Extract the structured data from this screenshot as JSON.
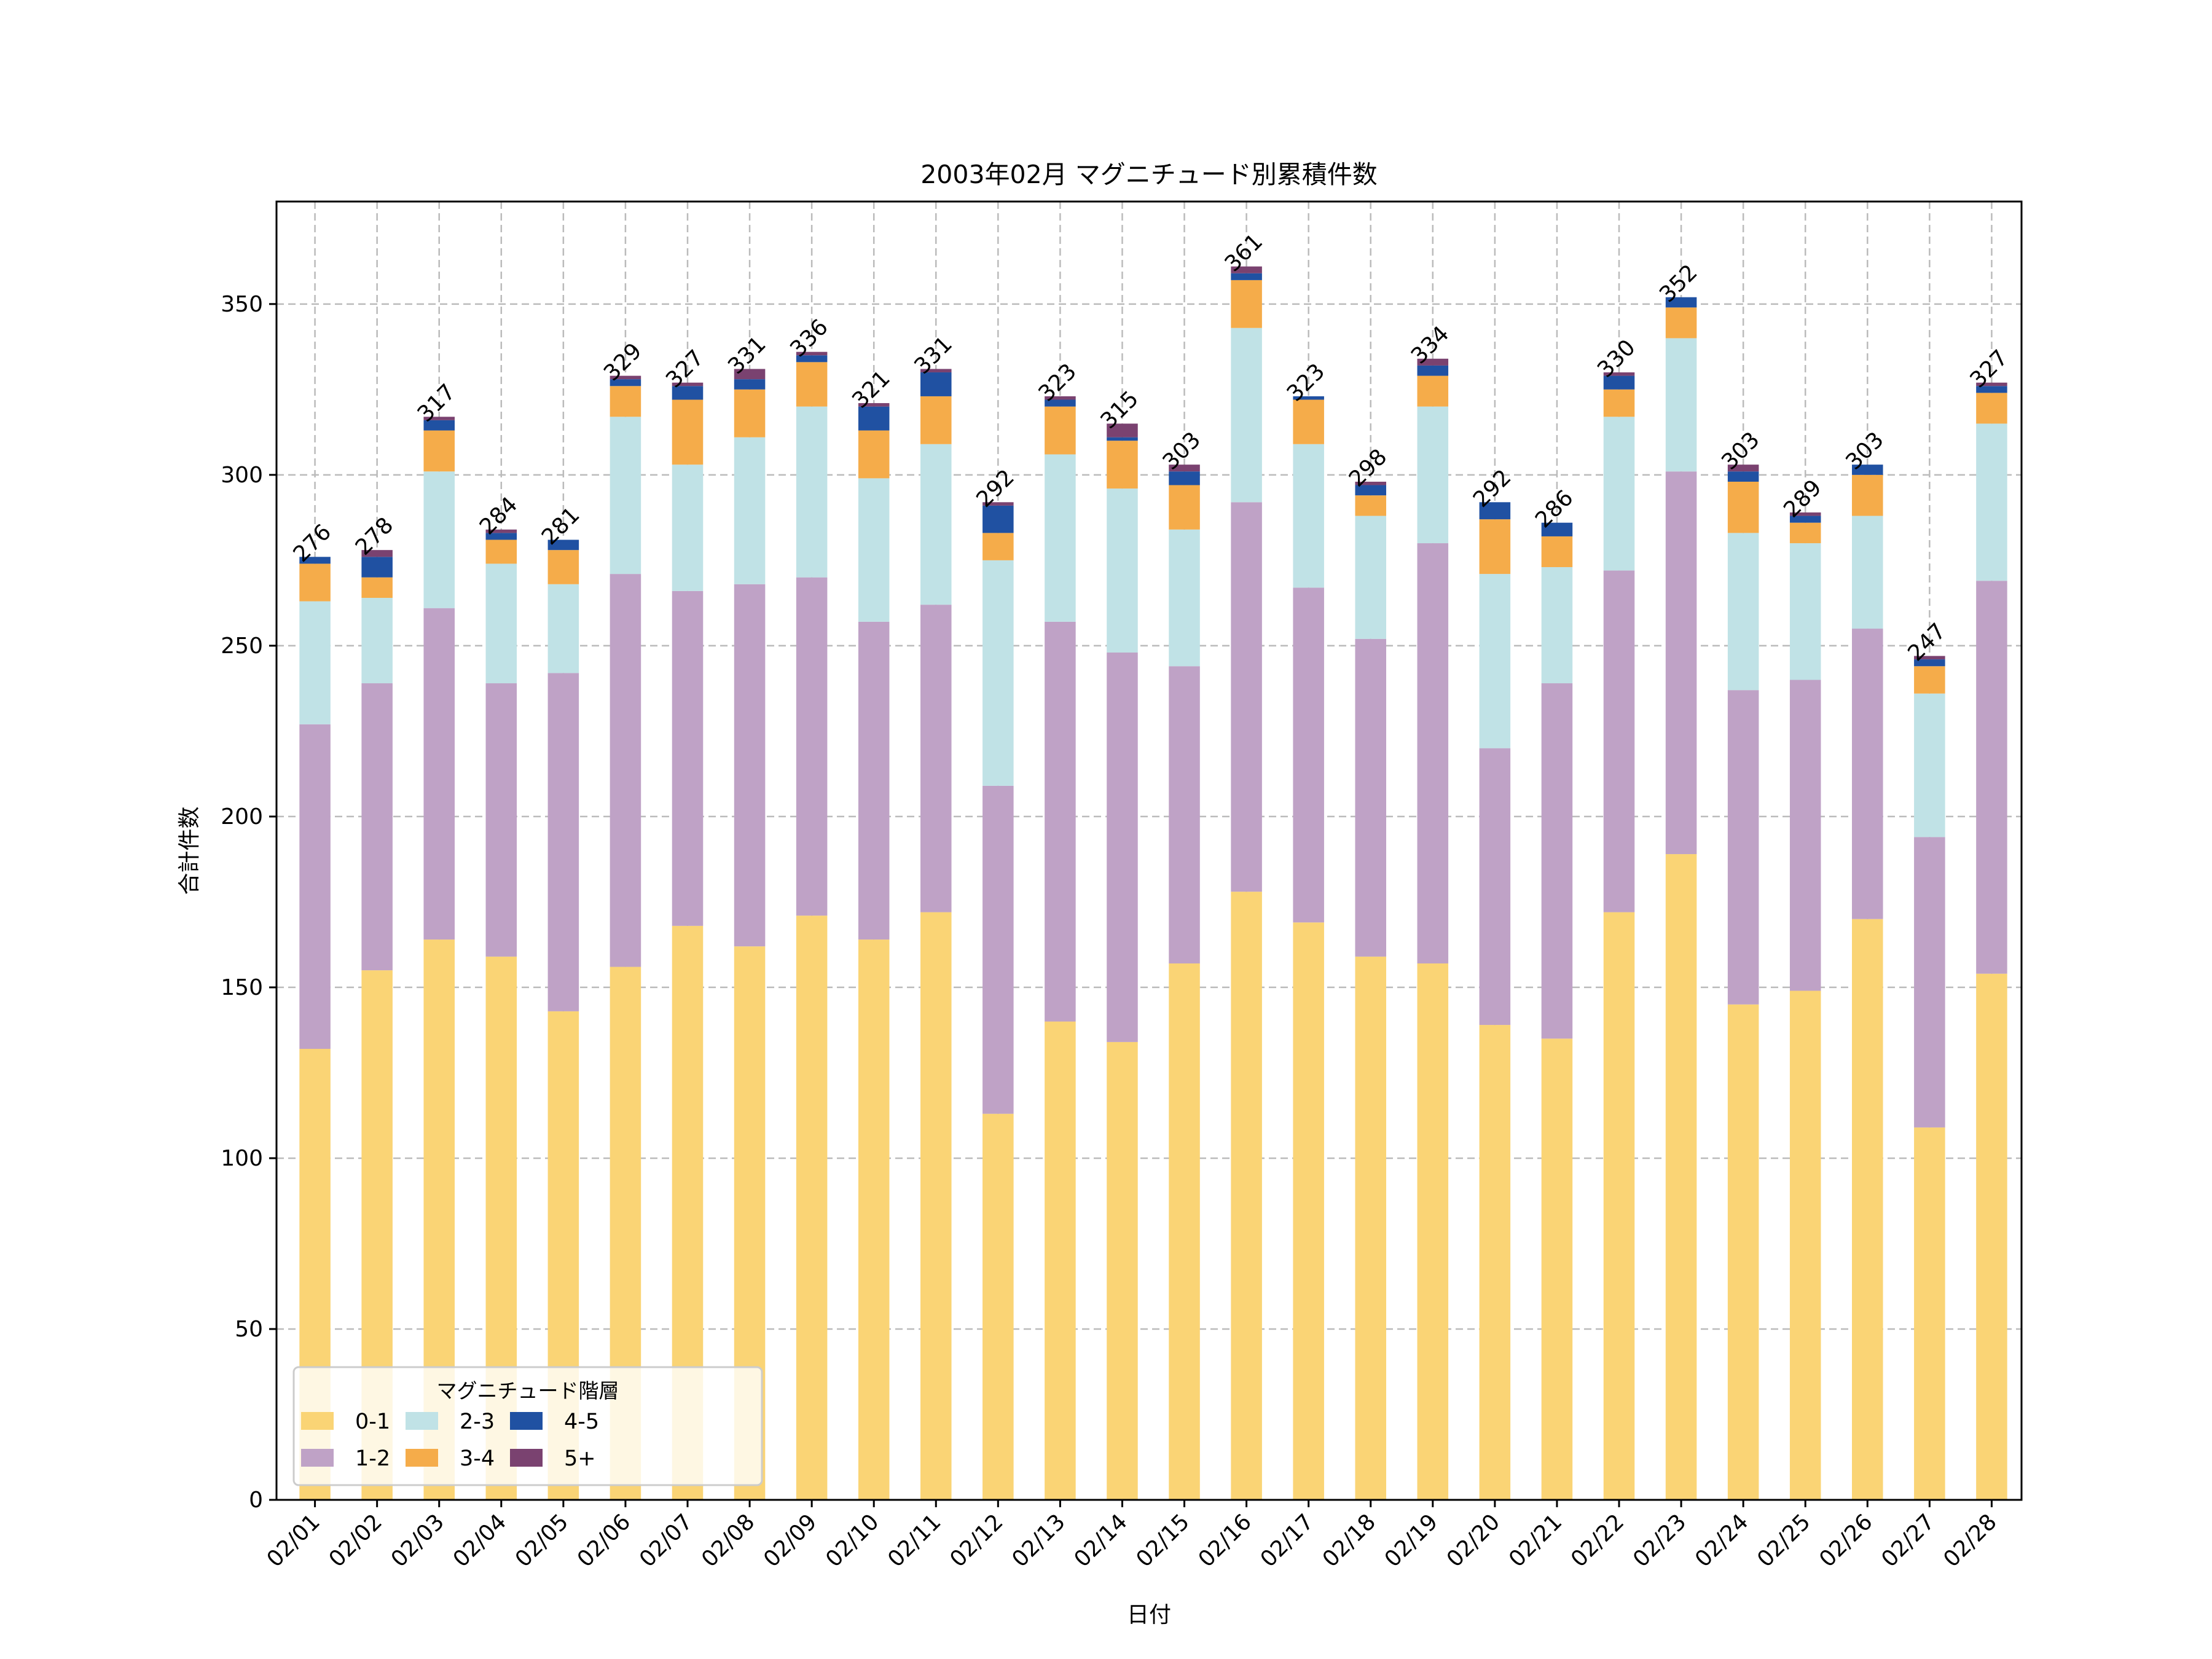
{
  "chart_data": {
    "type": "bar",
    "stacked": true,
    "title": "2003年02月 マグニチュード別累積件数",
    "xlabel": "日付",
    "ylabel": "合計件数",
    "ylim": [
      0,
      380
    ],
    "yticks": [
      0,
      50,
      100,
      150,
      200,
      250,
      300,
      350
    ],
    "grid": true,
    "legend": {
      "title": "マグニチュード階層",
      "placement": "lower-left",
      "columns": 3
    },
    "categories": [
      "02/01",
      "02/02",
      "02/03",
      "02/04",
      "02/05",
      "02/06",
      "02/07",
      "02/08",
      "02/09",
      "02/10",
      "02/11",
      "02/12",
      "02/13",
      "02/14",
      "02/15",
      "02/16",
      "02/17",
      "02/18",
      "02/19",
      "02/20",
      "02/21",
      "02/22",
      "02/23",
      "02/24",
      "02/25",
      "02/26",
      "02/27",
      "02/28"
    ],
    "series": [
      {
        "name": "0-1",
        "color": "#FAD475",
        "values": [
          132,
          155,
          164,
          159,
          143,
          156,
          168,
          162,
          171,
          164,
          172,
          113,
          140,
          134,
          157,
          178,
          169,
          159,
          157,
          139,
          135,
          172,
          189,
          145,
          149,
          170,
          109,
          154
        ]
      },
      {
        "name": "1-2",
        "color": "#BFA2C6",
        "values": [
          95,
          84,
          97,
          80,
          99,
          115,
          98,
          106,
          99,
          93,
          90,
          96,
          117,
          114,
          87,
          114,
          98,
          93,
          123,
          81,
          104,
          100,
          112,
          92,
          91,
          85,
          85,
          115
        ]
      },
      {
        "name": "2-3",
        "color": "#C0E2E6",
        "values": [
          36,
          25,
          40,
          35,
          26,
          46,
          37,
          43,
          50,
          42,
          47,
          66,
          49,
          48,
          40,
          51,
          42,
          36,
          40,
          51,
          34,
          45,
          39,
          46,
          40,
          33,
          42,
          46
        ]
      },
      {
        "name": "3-4",
        "color": "#F5AC4A",
        "values": [
          11,
          6,
          12,
          7,
          10,
          9,
          19,
          14,
          13,
          14,
          14,
          8,
          14,
          14,
          13,
          14,
          13,
          6,
          9,
          16,
          9,
          8,
          9,
          15,
          6,
          12,
          8,
          9
        ]
      },
      {
        "name": "4-5",
        "color": "#2051A2",
        "values": [
          2,
          6,
          3,
          2,
          3,
          2,
          4,
          3,
          2,
          7,
          7,
          8,
          2,
          1,
          4,
          2,
          1,
          3,
          3,
          5,
          4,
          4,
          3,
          3,
          2,
          3,
          2,
          2
        ]
      },
      {
        "name": "5+",
        "color": "#7A4270",
        "values": [
          0,
          2,
          1,
          1,
          0,
          1,
          1,
          3,
          1,
          1,
          1,
          1,
          1,
          4,
          2,
          2,
          0,
          1,
          2,
          0,
          0,
          1,
          0,
          2,
          1,
          0,
          1,
          1
        ]
      }
    ],
    "totals": [
      276,
      278,
      317,
      284,
      281,
      329,
      327,
      331,
      336,
      321,
      331,
      292,
      323,
      315,
      303,
      361,
      323,
      298,
      334,
      292,
      286,
      330,
      352,
      303,
      289,
      303,
      247,
      327
    ]
  }
}
